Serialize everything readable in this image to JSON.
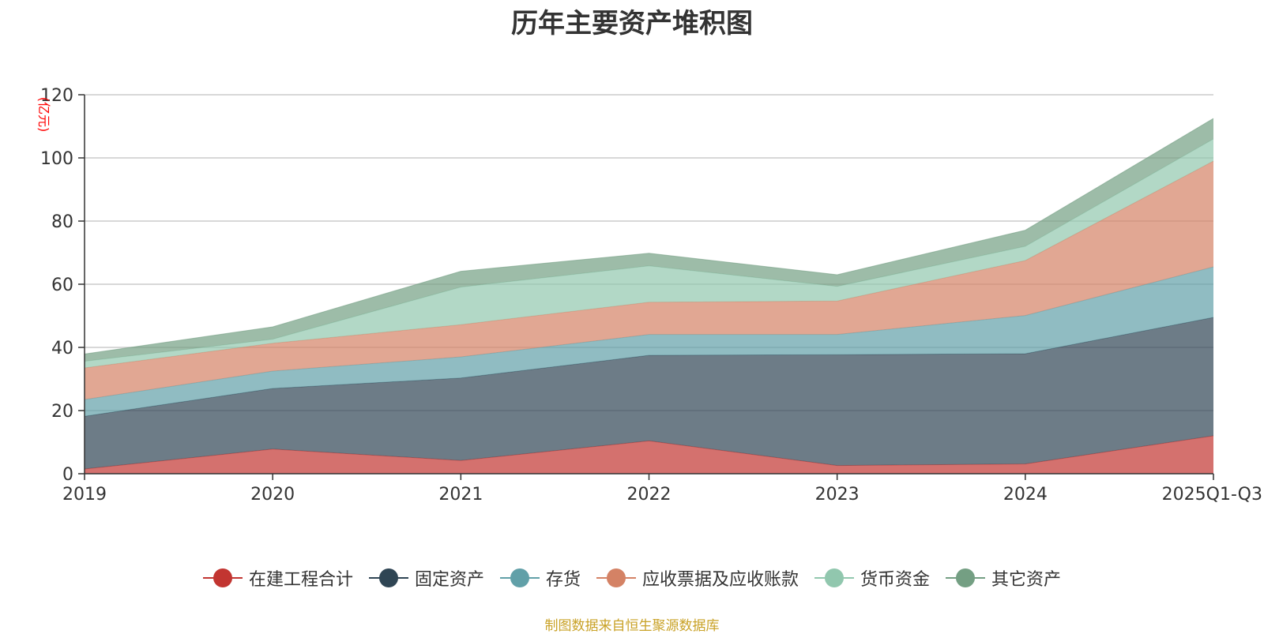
{
  "chart_data": {
    "type": "area",
    "stacked": true,
    "title": "历年主要资产堆积图",
    "unit_label": "(亿元)",
    "categories": [
      "2019",
      "2020",
      "2021",
      "2022",
      "2023",
      "2024",
      "2025Q1-Q3"
    ],
    "ylim": [
      0,
      120
    ],
    "yticks": [
      0,
      20,
      40,
      60,
      80,
      100,
      120
    ],
    "grid": true,
    "legend_position": "bottom",
    "series": [
      {
        "name": "在建工程合计",
        "color": "#c23531",
        "values": [
          1.5,
          7.8,
          4.2,
          10.4,
          2.6,
          3.1,
          12.0
        ]
      },
      {
        "name": "固定资产",
        "color": "#2f4554",
        "values": [
          16.7,
          19.2,
          26.1,
          27.1,
          35.1,
          34.9,
          37.5
        ]
      },
      {
        "name": "存货",
        "color": "#61a0a8",
        "values": [
          5.3,
          5.5,
          6.7,
          6.6,
          6.4,
          12.1,
          16.0
        ]
      },
      {
        "name": "应收票据及应收账款",
        "color": "#d48265",
        "values": [
          10.0,
          8.8,
          10.2,
          10.2,
          10.6,
          17.4,
          33.5
        ]
      },
      {
        "name": "货币资金",
        "color": "#91c7ae",
        "values": [
          2.1,
          1.3,
          11.9,
          11.5,
          4.6,
          4.5,
          7.0
        ]
      },
      {
        "name": "其它资产",
        "color": "#749f83",
        "values": [
          2.3,
          3.9,
          5.0,
          4.0,
          3.7,
          5.1,
          6.5
        ]
      }
    ]
  },
  "source_note": "制图数据来自恒生聚源数据库"
}
